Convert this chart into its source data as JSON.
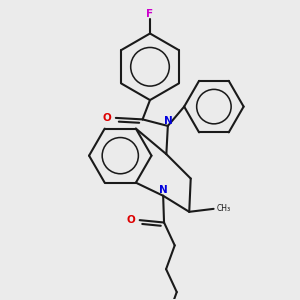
{
  "bg_color": "#ebebeb",
  "bond_color": "#1a1a1a",
  "N_color": "#0000dd",
  "O_color": "#dd0000",
  "F_color": "#cc00cc",
  "lw": 1.5,
  "dbo": 0.012,
  "figsize": [
    3.0,
    3.0
  ],
  "dpi": 100,
  "xlim": [
    0.0,
    1.0
  ],
  "ylim": [
    0.0,
    1.0
  ]
}
